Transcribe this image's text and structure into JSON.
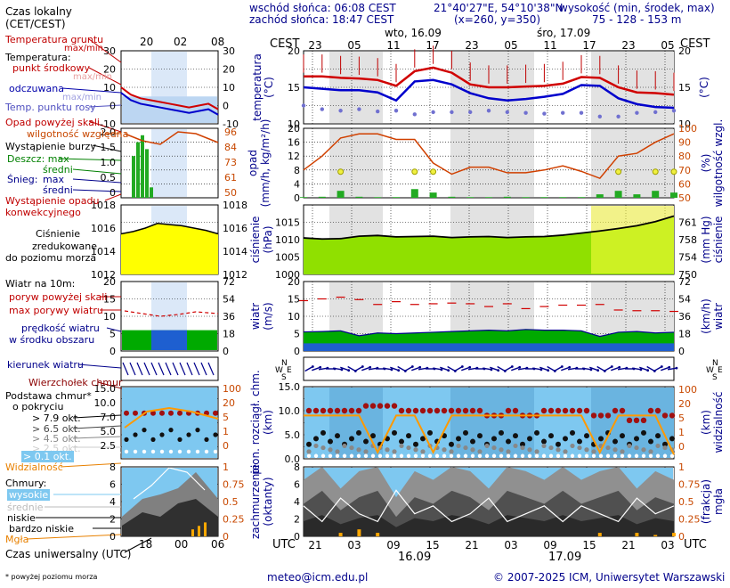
{
  "header": {
    "sunrise": "wschód słońca: 06:08 CEST",
    "sunset": "zachód słońca: 18:47 CEST",
    "coords": "21°40'27\"E, 54°10'38\"N",
    "grid": "(x=260,  y=350)",
    "elev_title": "wysokość (min, środek, max)",
    "elev_values": "75 - 128 - 153 m",
    "day1": "wto, 16.09",
    "day2": "śro, 17.09",
    "cest_label": "CEST",
    "utc_label": "UTC",
    "top_hours": [
      "23",
      "05",
      "11",
      "17",
      "23",
      "05",
      "11",
      "17",
      "23",
      "05"
    ],
    "bottom_hours": [
      "21",
      "03",
      "09",
      "15",
      "21",
      "03",
      "09",
      "15",
      "21",
      "03"
    ],
    "bottom_dates": [
      "16.09",
      "17.09"
    ]
  },
  "legend": {
    "time_local": "Czas lokalny",
    "time_local2": "(CET/CEST)",
    "time_ticks_top": [
      "20",
      "02",
      "08"
    ],
    "time_ticks_bottom": [
      "18",
      "00",
      "06"
    ],
    "time_utc": "Czas uniwersalny (UTC)",
    "footnote": "* powyżej poziomu morza",
    "temp_ground": "Temperatura gruntu",
    "temp_ground2": "max/min",
    "temp": "Temperatura:",
    "temp_mid": "punkt środkowy",
    "temp_mid2": "max/min",
    "temp_felt": "odczuwana",
    "temp_felt2": "max/min",
    "dew": "Temp. punktu rosy",
    "precip_above": "Opad powyżej skali",
    "humidity": "wilgotność względna",
    "storm": "Wystąpienie burzy",
    "rain": "Deszcz: max",
    "rain_mid": "średni",
    "snow": "Śnieg:",
    "snow_max": "max",
    "snow_mid": "średni",
    "precip_occ": "Wystąpienie opadu",
    "precip_occ2": "konwekcyjnego",
    "press1": "Ciśnienie",
    "press2": "zredukowane",
    "press3": "do poziomu morza",
    "wind": "Wiatr na 10m:",
    "gust_above": "poryw powyżej skali",
    "gust_max": "max porywy wiatru",
    "wind_speed": "prędkość wiatru",
    "wind_speed2": "w środku obszaru",
    "wind_dir": "kierunek wiatru",
    "cloud_top": "Wierzchołek chmur",
    "cloud_base": "Podstawa chmur*",
    "cloud_base2": "o pokryciu",
    "okta": [
      "> 7.9 okt.",
      "> 6.5 okt.",
      "> 4.5 okt.",
      "> 2.5 okt.",
      "> 0.1 okt."
    ],
    "visibility": "Widzialność",
    "clouds": "Chmury:",
    "cl_high": "wysokie",
    "cl_mid": "średnie",
    "cl_low": "niskie",
    "cl_vlow": "bardzo niskie",
    "fog": "Mgła"
  },
  "axes": {
    "temp_label": "temperatura",
    "temp_unit": "(°C)",
    "precip_label": "opad",
    "precip_unit": "(mm/h, kg/m²/h)",
    "hum_label": "wilgotność wzgl.",
    "hum_unit": "(%)",
    "press_label": "ciśnienie",
    "press_unit": "(hPa)",
    "press_unit2": "(mm Hg)",
    "wind_label": "wiatr",
    "wind_unit": "(m/s)",
    "wind_unit2": "(km/h)",
    "dir_letters": [
      "N",
      "W",
      "E",
      "S"
    ],
    "cloud_label": "pion. rozciągł. chm.",
    "cloud_unit": "(km)",
    "vis_label": "widzialność",
    "vis_unit": "(km)",
    "cover_label": "zachmurzenie",
    "cover_unit": "(oktanty)",
    "fog_label": "mgła",
    "fog_unit": "(frakcja)"
  },
  "footer": {
    "email": "meteo@icm.edu.pl",
    "copyright": "© 2007-2025 ICM, Uniwersytet Warszawski"
  },
  "colors": {
    "night": "#e0e0e0",
    "temp_line": "#d00000",
    "felt_line": "#0000cc",
    "dew": "#7070d0",
    "humidity": "#d04000",
    "rain_bar": "#22aa22",
    "pressure_fill": "#90e000",
    "wind_fill": "#00aa00",
    "cloud_bg": "#7ec8f0",
    "visibility": "#ff9900"
  },
  "chart_data": [
    {
      "type": "line",
      "name": "temperature",
      "ylim": [
        10,
        20
      ],
      "x_hours_utc": [
        0,
        6,
        12,
        18,
        24,
        30,
        36,
        42,
        48,
        54
      ],
      "series": [
        {
          "name": "punkt środkowy",
          "values": [
            16.5,
            16.5,
            16.3,
            16.2,
            16.0,
            15.2,
            17.2,
            17.7,
            17.0,
            15.4,
            15.0,
            15.0,
            15.1,
            15.2,
            15.5,
            16.4,
            16.3,
            15.0,
            14.3,
            14.2,
            14.0
          ]
        },
        {
          "name": "odczuwana",
          "values": [
            15.0,
            14.8,
            14.6,
            14.6,
            14.3,
            13.2,
            15.8,
            16.0,
            15.4,
            14.2,
            13.5,
            13.2,
            13.4,
            13.7,
            14.1,
            15.3,
            15.2,
            13.5,
            12.7,
            12.3,
            12.2
          ]
        },
        {
          "name": "Temp. punktu rosy",
          "values": [
            12.5,
            12.0,
            11.8,
            12.0,
            11.7,
            11.8,
            11.3,
            11.6,
            11.6,
            11.6,
            11.8,
            11.6,
            11.5,
            11.4,
            11.5,
            11.5,
            11.0,
            11.0,
            11.5,
            11.6,
            11.8
          ]
        }
      ]
    },
    {
      "type": "bar",
      "name": "precipitation",
      "ylim": [
        0,
        20
      ],
      "humidity_ylim": [
        50,
        100
      ],
      "precip_values": [
        0.2,
        0.3,
        2.0,
        0.3,
        0.2,
        0.2,
        2.5,
        1.5,
        0.3,
        0.2,
        0.2,
        0.3,
        0.2,
        0.2,
        0.2,
        0.2,
        1.0,
        2.0,
        1.0,
        2.0,
        1.5
      ],
      "humidity_values": [
        70,
        80,
        93,
        96,
        96,
        92,
        92,
        75,
        67,
        72,
        72,
        68,
        68,
        70,
        73,
        69,
        64,
        80,
        82,
        90,
        96
      ]
    },
    {
      "type": "area",
      "name": "pressure",
      "ylim": [
        1000,
        1020
      ],
      "values": [
        1010.5,
        1010.2,
        1010.3,
        1011.0,
        1011.2,
        1010.8,
        1010.9,
        1011.0,
        1010.6,
        1010.8,
        1010.9,
        1010.6,
        1010.8,
        1010.9,
        1011.3,
        1011.9,
        1012.5,
        1013.2,
        1014.0,
        1015.2,
        1016.8
      ]
    },
    {
      "type": "area",
      "name": "wind",
      "ylim": [
        0,
        20
      ],
      "speed_values": [
        5.5,
        5.6,
        5.8,
        4.4,
        5.2,
        5.0,
        5.2,
        5.4,
        5.6,
        5.8,
        6.0,
        5.8,
        6.2,
        6.0,
        6.0,
        5.8,
        4.2,
        5.4,
        5.6,
        5.2,
        5.4
      ],
      "gust_values": [
        14.5,
        15.0,
        15.5,
        14.8,
        13.4,
        14.2,
        13.4,
        13.6,
        13.8,
        13.6,
        12.8,
        13.6,
        12.2,
        12.8,
        13.2,
        13.2,
        13.4,
        11.8,
        11.6,
        11.6,
        11.4
      ]
    },
    {
      "type": "scatter",
      "name": "cloud base and visibility",
      "ylim": [
        0,
        15
      ],
      "vis_ylim": [
        0,
        100
      ],
      "cloud_base_79": [
        10,
        10,
        10,
        11,
        11,
        10,
        10,
        10,
        10,
        10,
        9,
        10,
        9,
        10,
        10,
        10,
        9,
        10,
        8,
        10,
        9
      ],
      "visibility_values": [
        20,
        20,
        20,
        20,
        3,
        20,
        20,
        3,
        20,
        20,
        20,
        20,
        20,
        20,
        20,
        20,
        3,
        20,
        20,
        20,
        2
      ]
    },
    {
      "type": "area",
      "name": "cloud cover",
      "ylim": [
        0,
        8
      ],
      "fog_ylim": [
        0,
        1
      ],
      "total_cover": [
        5,
        7,
        4,
        6,
        7,
        3,
        6,
        5,
        7,
        6,
        4,
        7,
        6,
        5,
        7,
        5,
        6,
        7,
        4,
        6,
        5
      ],
      "fog_values": [
        0,
        0,
        0.05,
        0.1,
        0.05,
        0,
        0,
        0,
        0,
        0,
        0,
        0,
        0,
        0,
        0,
        0,
        0.05,
        0,
        0.05,
        0.02,
        0.05
      ]
    }
  ]
}
